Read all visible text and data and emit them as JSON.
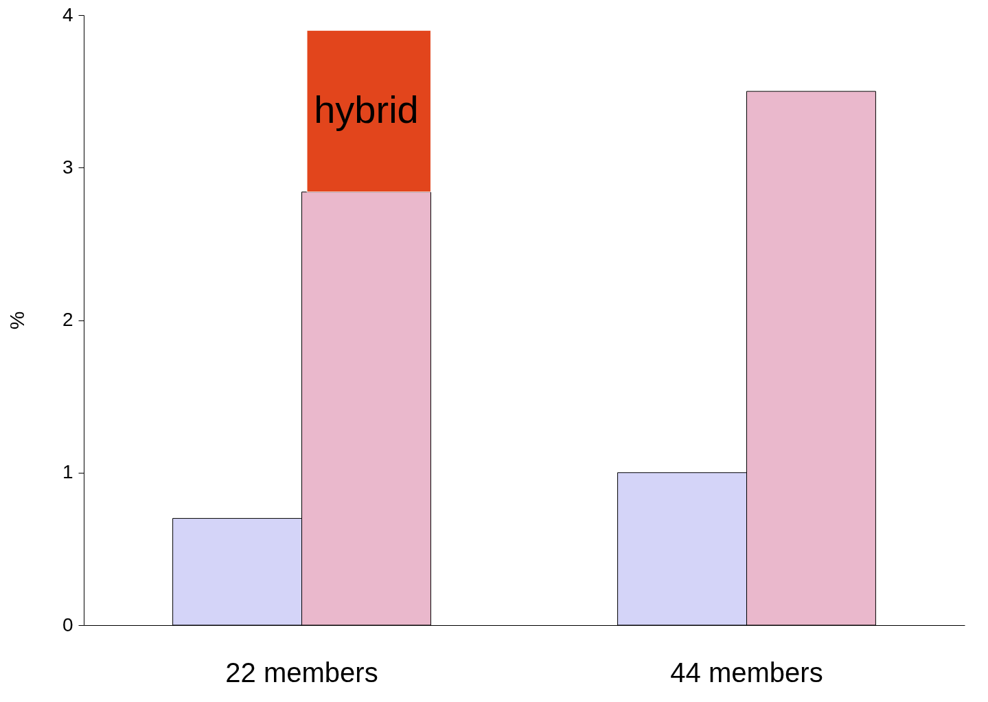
{
  "chart_data": {
    "type": "bar",
    "ylabel": "%",
    "categories": [
      "22 members",
      "44 members"
    ],
    "series": [
      {
        "color": "#d4d4f8",
        "values": [
          0.7,
          1.0
        ]
      },
      {
        "color": "#eab8cc",
        "values": [
          2.84,
          3.5
        ]
      },
      {
        "name": "hybrid",
        "color": "#e2451c",
        "values": [
          1.06,
          null
        ],
        "base": [
          2.84,
          null
        ]
      }
    ],
    "ylim": [
      0,
      4
    ],
    "yticks": [
      0,
      1,
      2,
      3,
      4
    ],
    "grid": false
  }
}
